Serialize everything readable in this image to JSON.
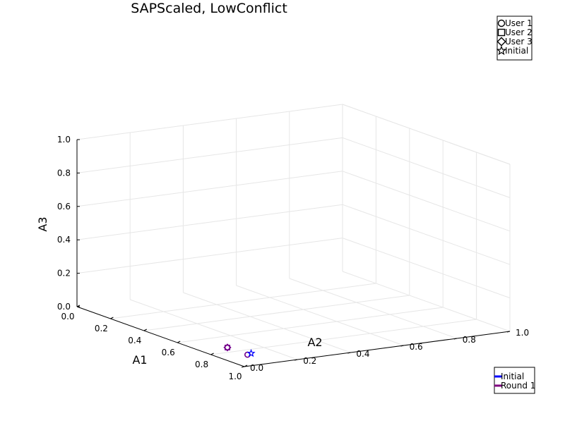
{
  "chart_data": {
    "type": "scatter",
    "projection": "3d",
    "title": "SAPScaled, LowConflict",
    "xlabel": "A1",
    "ylabel": "A2",
    "zlabel": "A3",
    "xlim": [
      0,
      1
    ],
    "ylim": [
      0,
      1
    ],
    "zlim": [
      0,
      1
    ],
    "x_ticks": [
      "0.0",
      "0.2",
      "0.4",
      "0.6",
      "0.8",
      "1.0"
    ],
    "y_ticks": [
      "0.0",
      "0.2",
      "0.4",
      "0.6",
      "0.8",
      "1.0"
    ],
    "z_ticks": [
      "0.0",
      "0.2",
      "0.4",
      "0.6",
      "0.8",
      "1.0"
    ],
    "grid": true,
    "marker_legend": {
      "placement": "top-right",
      "entries": [
        {
          "label": "User 1",
          "marker": "circle"
        },
        {
          "label": "User 2",
          "marker": "square"
        },
        {
          "label": "User 3",
          "marker": "diamond"
        },
        {
          "label": "Initial",
          "marker": "star"
        }
      ]
    },
    "series_legend": {
      "placement": "bottom-right",
      "entries": [
        {
          "label": "Initial",
          "color": "#0000ff"
        },
        {
          "label": "Round 1",
          "color": "#800080"
        }
      ]
    },
    "points": [
      {
        "series": "Initial",
        "marker": "circle",
        "x": 0.86,
        "y": 0.1,
        "z": 0.0
      },
      {
        "series": "Round 1",
        "marker": "circle",
        "x": 0.86,
        "y": 0.1,
        "z": 0.0
      },
      {
        "series": "Initial",
        "marker": "square",
        "x": 0.74,
        "y": 0.1,
        "z": 0.0
      },
      {
        "series": "Round 1",
        "marker": "square",
        "x": 0.74,
        "y": 0.1,
        "z": 0.0
      },
      {
        "series": "Initial",
        "marker": "diamond",
        "x": 0.74,
        "y": 0.1,
        "z": 0.0
      },
      {
        "series": "Round 1",
        "marker": "diamond",
        "x": 0.74,
        "y": 0.1,
        "z": 0.0
      },
      {
        "series": "Initial",
        "marker": "star",
        "x": 0.85,
        "y": 0.12,
        "z": 0.0
      }
    ]
  }
}
